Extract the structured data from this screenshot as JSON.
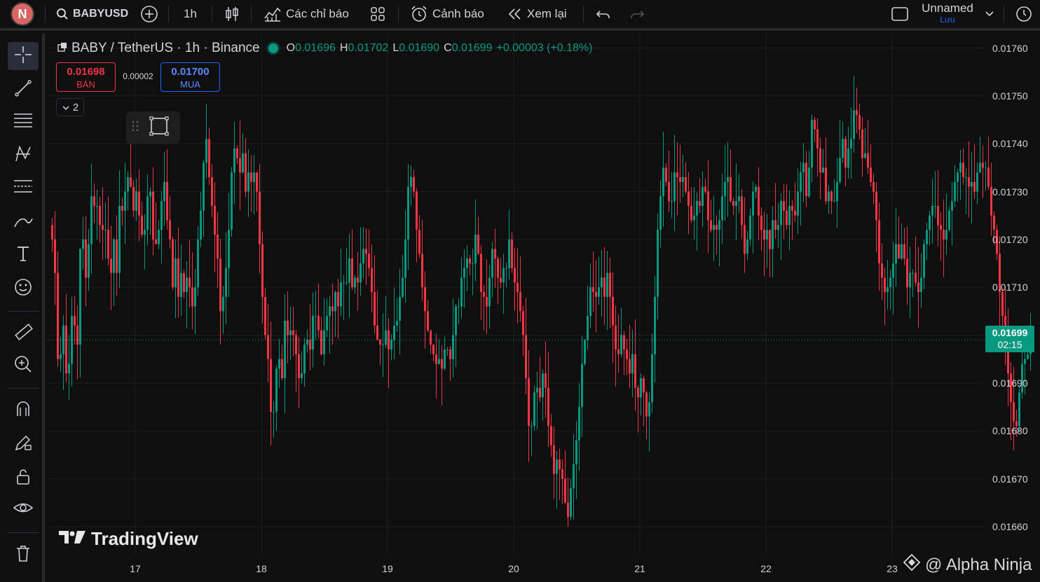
{
  "topbar": {
    "avatar_letter": "N",
    "symbol": "BABYUSD",
    "interval": "1h",
    "indicators_label": "Các chỉ báo",
    "alerts_label": "Cảnh báo",
    "replay_label": "Xem lại",
    "layout_name": "Unnamed",
    "save_label": "Lưu"
  },
  "legend": {
    "title": "BABY / TetherUS · 1h · Binance",
    "o_label": "O",
    "o": "0.01696",
    "h_label": "H",
    "h": "0.01702",
    "l_label": "L",
    "l": "0.01690",
    "c_label": "C",
    "c": "0.01699",
    "change": "+0.00003 (+0.18%)"
  },
  "trade": {
    "sell_price": "0.01698",
    "sell_label": "BÁN",
    "spread": "0.00002",
    "buy_price": "0.01700",
    "buy_label": "MUA",
    "collapse_count": "2"
  },
  "current_price": {
    "value": "0.01699",
    "countdown": "02:15"
  },
  "branding": {
    "logo": "TradingView",
    "watermark": "@ Alpha Ninja"
  },
  "colors": {
    "up": "#089981",
    "down": "#f23645",
    "background": "#0f0f0f",
    "grid": "#1f1f1f"
  },
  "chart_data": {
    "type": "candlestick",
    "ylim": [
      0.01655,
      0.01763
    ],
    "yticks": [
      "0.01760",
      "0.01750",
      "0.01740",
      "0.01730",
      "0.01720",
      "0.01710",
      "0.01700",
      "0.01690",
      "0.01680",
      "0.01670",
      "0.01660"
    ],
    "xticks": [
      {
        "label": "17",
        "index": 30
      },
      {
        "label": "18",
        "index": 75
      },
      {
        "label": "19",
        "index": 120
      },
      {
        "label": "20",
        "index": 165
      },
      {
        "label": "21",
        "index": 210
      },
      {
        "label": "22",
        "index": 255
      },
      {
        "label": "23",
        "index": 300
      }
    ],
    "close_start": 0.01723,
    "closes": [
      0.0172,
      0.01713,
      0.01695,
      0.01696,
      0.01702,
      0.01692,
      0.01694,
      0.01704,
      0.01702,
      0.01698,
      0.01718,
      0.0172,
      0.01712,
      0.01719,
      0.01729,
      0.01727,
      0.01727,
      0.01723,
      0.01722,
      0.01722,
      0.01716,
      0.01713,
      0.0172,
      0.01713,
      0.01727,
      0.01726,
      0.0173,
      0.01733,
      0.01731,
      0.01726,
      0.0173,
      0.01725,
      0.01721,
      0.01722,
      0.01729,
      0.0173,
      0.0172,
      0.01719,
      0.01722,
      0.01728,
      0.01732,
      0.01724,
      0.0172,
      0.0171,
      0.01716,
      0.01708,
      0.01713,
      0.01709,
      0.01712,
      0.0171,
      0.01706,
      0.0171,
      0.0172,
      0.01726,
      0.01736,
      0.01741,
      0.01733,
      0.01727,
      0.01721,
      0.01716,
      0.01705,
      0.01708,
      0.01714,
      0.01722,
      0.01734,
      0.01739,
      0.01737,
      0.01734,
      0.01738,
      0.0173,
      0.01734,
      0.01732,
      0.01734,
      0.0173,
      0.01719,
      0.01708,
      0.017,
      0.01695,
      0.01684,
      0.01684,
      0.01693,
      0.01695,
      0.01691,
      0.01703,
      0.017,
      0.01701,
      0.017,
      0.01696,
      0.01691,
      0.01692,
      0.01698,
      0.01699,
      0.01697,
      0.01704,
      0.01704,
      0.01701,
      0.01696,
      0.01701,
      0.01704,
      0.01706,
      0.01705,
      0.01709,
      0.01706,
      0.01711,
      0.01711,
      0.01711,
      0.01716,
      0.0171,
      0.01712,
      0.01711,
      0.01715,
      0.01718,
      0.01717,
      0.01714,
      0.01709,
      0.01702,
      0.01699,
      0.01698,
      0.01698,
      0.01701,
      0.01697,
      0.01699,
      0.01702,
      0.01703,
      0.01708,
      0.01712,
      0.0172,
      0.01731,
      0.01733,
      0.0173,
      0.01722,
      0.01717,
      0.0171,
      0.01705,
      0.01701,
      0.01698,
      0.01696,
      0.01694,
      0.01695,
      0.01693,
      0.01697,
      0.01697,
      0.01695,
      0.017,
      0.01706,
      0.01706,
      0.01712,
      0.01714,
      0.01716,
      0.01715,
      0.01715,
      0.01721,
      0.01717,
      0.01709,
      0.01708,
      0.01706,
      0.01712,
      0.01718,
      0.01716,
      0.01712,
      0.01711,
      0.01714,
      0.01714,
      0.0172,
      0.01714,
      0.01711,
      0.01709,
      0.01705,
      0.017,
      0.01691,
      0.01681,
      0.01681,
      0.01688,
      0.01689,
      0.01687,
      0.01692,
      0.01689,
      0.01681,
      0.01677,
      0.01671,
      0.01674,
      0.01672,
      0.0167,
      0.01665,
      0.01662,
      0.01668,
      0.01673,
      0.01678,
      0.01685,
      0.01694,
      0.01699,
      0.01704,
      0.0171,
      0.01709,
      0.01708,
      0.0171,
      0.01712,
      0.01708,
      0.01713,
      0.01708,
      0.01702,
      0.01697,
      0.01696,
      0.017,
      0.01697,
      0.01695,
      0.01692,
      0.01696,
      0.01689,
      0.01687,
      0.01691,
      0.01688,
      0.01683,
      0.01686,
      0.01696,
      0.01708,
      0.01722,
      0.01729,
      0.01735,
      0.01732,
      0.01728,
      0.01728,
      0.01734,
      0.01733,
      0.01732,
      0.01733,
      0.0173,
      0.01727,
      0.01724,
      0.01725,
      0.01728,
      0.01727,
      0.01731,
      0.0173,
      0.01724,
      0.01722,
      0.01723,
      0.01722,
      0.01724,
      0.01729,
      0.01732,
      0.01733,
      0.01728,
      0.01727,
      0.01728,
      0.01729,
      0.01723,
      0.01717,
      0.0172,
      0.01725,
      0.0173,
      0.01731,
      0.01725,
      0.01722,
      0.0172,
      0.01722,
      0.01718,
      0.01724,
      0.01722,
      0.01723,
      0.01728,
      0.01726,
      0.01723,
      0.01727,
      0.01726,
      0.01725,
      0.0173,
      0.01734,
      0.01736,
      0.01729,
      0.01735,
      0.01745,
      0.01743,
      0.01739,
      0.01734,
      0.01735,
      0.01728,
      0.0173,
      0.01728,
      0.01728,
      0.01732,
      0.01737,
      0.01741,
      0.01735,
      0.01739,
      0.01741,
      0.01747,
      0.01746,
      0.01743,
      0.01737,
      0.01738,
      0.01735,
      0.01732,
      0.0173,
      0.01724,
      0.01715,
      0.01712,
      0.01709,
      0.0171,
      0.01712,
      0.01715,
      0.01719,
      0.01716,
      0.01719,
      0.01716,
      0.0171,
      0.01713,
      0.01713,
      0.01711,
      0.01709,
      0.01712,
      0.01719,
      0.01722,
      0.01725,
      0.01727,
      0.01727,
      0.01723,
      0.01722,
      0.0172,
      0.01722,
      0.01726,
      0.01728,
      0.01732,
      0.01734,
      0.01736,
      0.01733,
      0.01733,
      0.01731,
      0.01732,
      0.0173,
      0.01734,
      0.01736,
      0.01735,
      0.01735,
      0.01731,
      0.01725,
      0.01722,
      0.01717,
      0.01709,
      0.01704,
      0.01699,
      0.01692,
      0.01686,
      0.01682,
      0.01681,
      0.01688,
      0.01694,
      0.01695,
      0.01696,
      0.01699
    ]
  }
}
